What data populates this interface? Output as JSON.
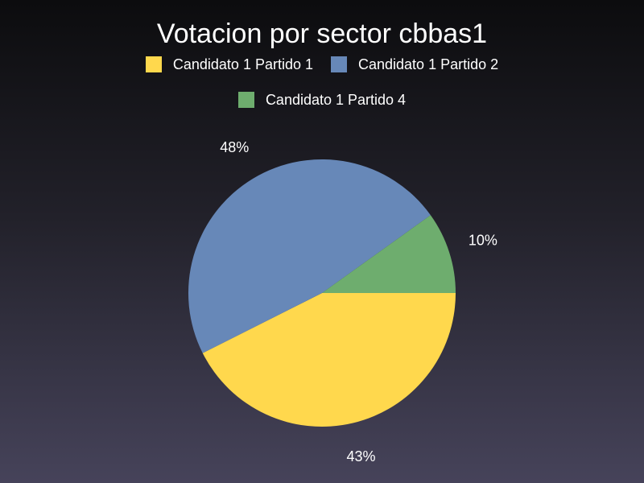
{
  "chart_data": {
    "type": "pie",
    "title": "Votacion por sector cbbas1",
    "legend_position": "top",
    "slices": [
      {
        "name": "Candidato 1 Partido 1",
        "value": 43,
        "label": "43%",
        "color": "#ffd84d"
      },
      {
        "name": "Candidato 1 Partido 2",
        "value": 48,
        "label": "48%",
        "color": "#6788b8"
      },
      {
        "name": "Candidato 1 Partido 4",
        "value": 10,
        "label": "10%",
        "color": "#6ead6e"
      }
    ]
  }
}
